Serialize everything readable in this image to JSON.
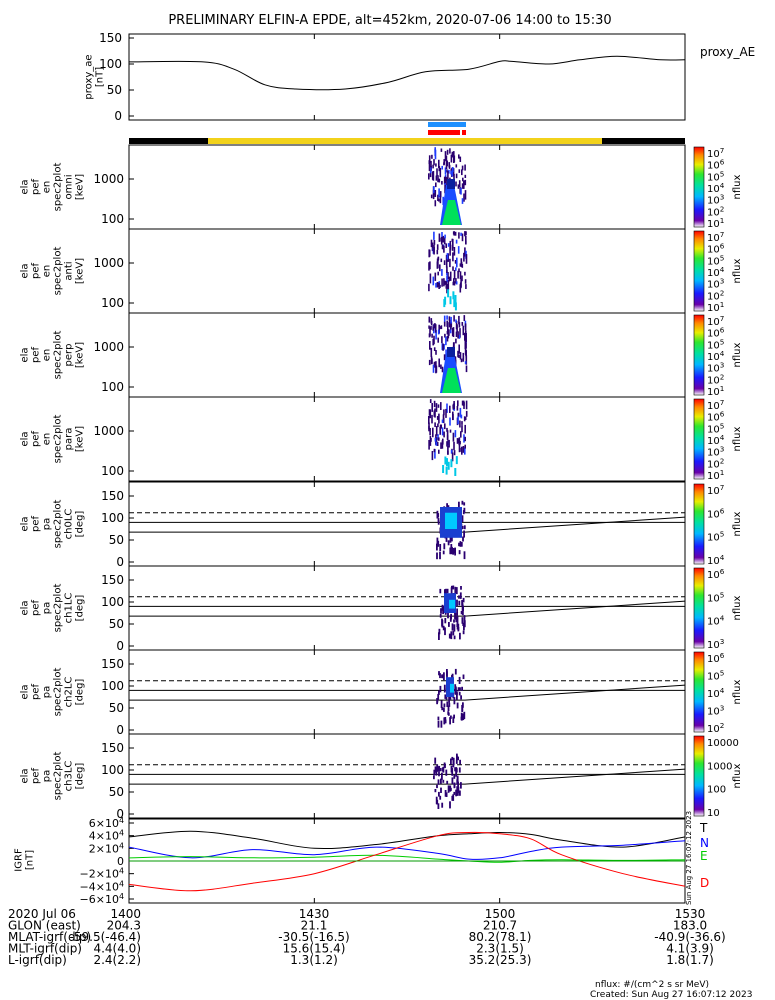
{
  "title": "PRELIMINARY ELFIN-A EPDE, alt=452km, 2020-07-06 14:00 to 15:30",
  "chart_data": {
    "type": "line",
    "x_range": [
      "14:00",
      "15:30"
    ],
    "x_ticks": [
      "1400",
      "1430",
      "1500",
      "1530"
    ],
    "ae_panel": {
      "ylabel": [
        "proxy_ae",
        "[nT]"
      ],
      "yticks": [
        "150",
        "100",
        "50",
        "0"
      ],
      "ylim": [
        0,
        150
      ],
      "series_label": "proxy_AE",
      "x_min": [
        0,
        12,
        17,
        22,
        27,
        35,
        42,
        48,
        55,
        60,
        62,
        68,
        73,
        79,
        86,
        90
      ],
      "values": [
        104,
        104,
        90,
        60,
        52,
        52,
        65,
        85,
        90,
        105,
        105,
        100,
        108,
        115,
        108,
        108
      ]
    },
    "spectrogram_panels": [
      {
        "ylabel": [
          "ela",
          "pef",
          "en",
          "spec2plot",
          "omni",
          "[keV]"
        ],
        "yticks": [
          "1000",
          "100"
        ],
        "cbar_ticks": [
          "10^7",
          "10^6",
          "10^5",
          "10^4",
          "10^3",
          "10^2",
          "10^1"
        ],
        "cbar_label": "nflux"
      },
      {
        "ylabel": [
          "ela",
          "pef",
          "en",
          "spec2plot",
          "anti",
          "[keV]"
        ],
        "yticks": [
          "1000",
          "100"
        ],
        "cbar_ticks": [
          "10^7",
          "10^6",
          "10^5",
          "10^4",
          "10^3",
          "10^2",
          "10^1"
        ],
        "cbar_label": "nflux"
      },
      {
        "ylabel": [
          "ela",
          "pef",
          "en",
          "spec2plot",
          "perp",
          "[keV]"
        ],
        "yticks": [
          "1000",
          "100"
        ],
        "cbar_ticks": [
          "10^7",
          "10^6",
          "10^5",
          "10^4",
          "10^3",
          "10^2",
          "10^1"
        ],
        "cbar_label": "nflux"
      },
      {
        "ylabel": [
          "ela",
          "pef",
          "en",
          "spec2plot",
          "para",
          "[keV]"
        ],
        "yticks": [
          "1000",
          "100"
        ],
        "cbar_ticks": [
          "10^7",
          "10^6",
          "10^5",
          "10^4",
          "10^3",
          "10^2",
          "10^1"
        ],
        "cbar_label": "nflux"
      }
    ],
    "pitch_angle_panels": [
      {
        "ylabel": [
          "ela",
          "pef",
          "pa",
          "spec2plot",
          "ch0LC",
          "[deg]"
        ],
        "yticks": [
          "150",
          "100",
          "50",
          "0"
        ],
        "cbar_ticks": [
          "10^7",
          "10^6",
          "10^5",
          "10^4"
        ],
        "cbar_label": "nflux"
      },
      {
        "ylabel": [
          "ela",
          "pef",
          "pa",
          "spec2plot",
          "ch1LC",
          "[deg]"
        ],
        "yticks": [
          "150",
          "100",
          "50",
          "0"
        ],
        "cbar_ticks": [
          "10^6",
          "10^5",
          "10^4",
          "10^3"
        ],
        "cbar_label": "nflux"
      },
      {
        "ylabel": [
          "ela",
          "pef",
          "pa",
          "spec2plot",
          "ch2LC",
          "[deg]"
        ],
        "yticks": [
          "150",
          "100",
          "50",
          "0"
        ],
        "cbar_ticks": [
          "10^6",
          "10^5",
          "10^4",
          "10^3",
          "10^2"
        ],
        "cbar_label": "nflux"
      },
      {
        "ylabel": [
          "ela",
          "pef",
          "pa",
          "spec2plot",
          "ch3LC",
          "[deg]"
        ],
        "yticks": [
          "150",
          "100",
          "50",
          "0"
        ],
        "cbar_ticks": [
          "10000",
          "1000",
          "100",
          "10"
        ],
        "cbar_label": "nflux"
      }
    ],
    "igrf_panel": {
      "ylabel": [
        "IGRF",
        "[nT]"
      ],
      "yticks": [
        "6×10^4",
        "4×10^4",
        "2×10^4",
        "0",
        "−2×10^4",
        "−4×10^4",
        "−6×10^4"
      ],
      "ylim": [
        -60000,
        60000
      ],
      "side_note": "Sun Aug 27 16:07:12 2023",
      "x_min": [
        0,
        10,
        20,
        30,
        40,
        50,
        55,
        60,
        65,
        70,
        80,
        90
      ],
      "series": [
        {
          "name": "T",
          "color": "#000000",
          "values": [
            38000,
            47000,
            36000,
            20000,
            26000,
            40000,
            43000,
            45000,
            42000,
            33000,
            22000,
            38000
          ]
        },
        {
          "name": "N",
          "color": "#0000ff",
          "values": [
            22000,
            5000,
            18000,
            10000,
            22000,
            12000,
            3000,
            5000,
            15000,
            22000,
            25000,
            32000
          ]
        },
        {
          "name": "E",
          "color": "#00cc00",
          "values": [
            5000,
            7000,
            5000,
            6000,
            9000,
            3000,
            0,
            -2000,
            1000,
            2000,
            1000,
            2000
          ]
        },
        {
          "name": "D",
          "color": "#ff0000",
          "values": [
            -37000,
            -47000,
            -35000,
            -20000,
            10000,
            40000,
            45000,
            43000,
            35000,
            10000,
            -20000,
            -40000
          ]
        }
      ]
    },
    "ephemeris": {
      "rows": [
        {
          "label": "2020 Jul 06",
          "values": [
            "1400",
            "1430",
            "1500",
            "1530"
          ]
        },
        {
          "label": "GLON (east)",
          "values": [
            "204.3",
            "21.1",
            "210.7",
            "183.0"
          ]
        },
        {
          "label": "MLAT-igrf(dip)",
          "values": [
            "-59.5(-46.4)",
            "-30.5(-16.5)",
            "80.2(78.1)",
            "-40.9(-36.6)"
          ]
        },
        {
          "label": "MLT-igrf(dip)",
          "values": [
            "4.4(4.0)",
            "15.6(15.4)",
            "2.3(1.5)",
            "4.1(3.9)"
          ]
        },
        {
          "label": "L-igrf(dip)",
          "values": [
            "2.4(2.2)",
            "1.3(1.2)",
            "35.2(25.3)",
            "1.8(1.7)"
          ]
        }
      ]
    },
    "footer": {
      "units": "nflux: #/(cm^2 s sr MeV)",
      "created": "Created: Sun Aug 27 16:07:12 2023"
    }
  }
}
